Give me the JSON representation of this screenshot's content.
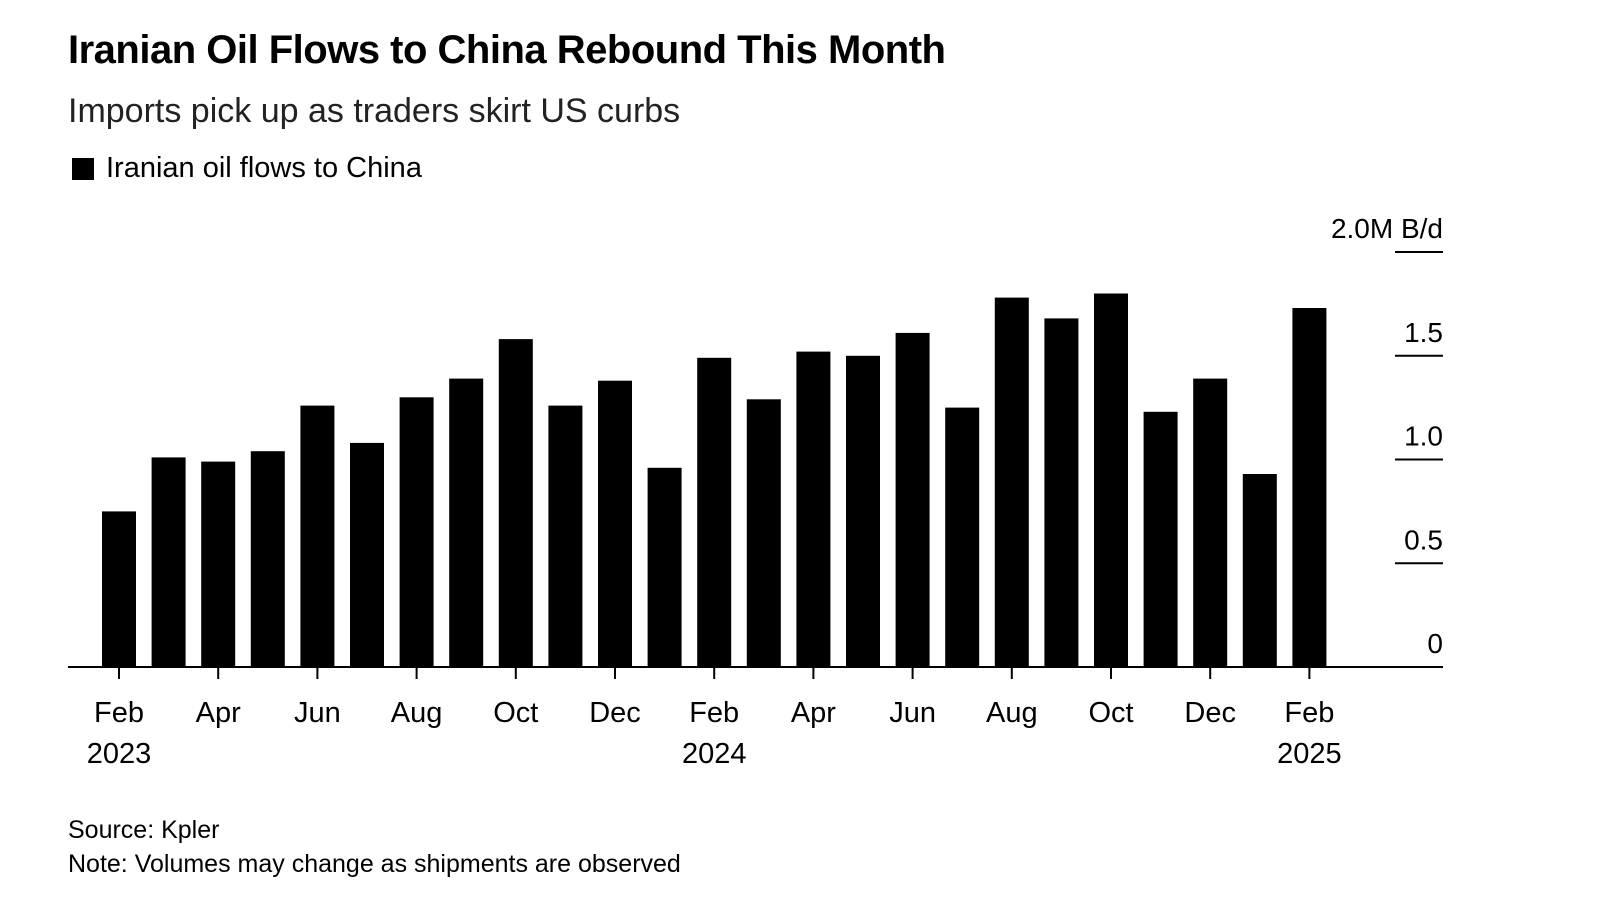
{
  "chart_data": {
    "type": "bar",
    "title": "Iranian Oil Flows to China Rebound This Month",
    "subtitle": "Imports pick up as traders skirt US curbs",
    "legend": [
      "Iranian oil flows to China"
    ],
    "unit_label": "2.0M B/d",
    "xlabel": "",
    "ylabel": "",
    "ylim": [
      0,
      2.0
    ],
    "y_ticks": [
      {
        "value": 0,
        "label": "0"
      },
      {
        "value": 0.5,
        "label": "0.5"
      },
      {
        "value": 1.0,
        "label": "1.0"
      },
      {
        "value": 1.5,
        "label": "1.5"
      },
      {
        "value": 2.0,
        "label": "2.0M B/d"
      }
    ],
    "categories": [
      "Feb 2023",
      "Mar 2023",
      "Apr 2023",
      "May 2023",
      "Jun 2023",
      "Jul 2023",
      "Aug 2023",
      "Sep 2023",
      "Oct 2023",
      "Nov 2023",
      "Dec 2023",
      "Jan 2024",
      "Feb 2024",
      "Mar 2024",
      "Apr 2024",
      "May 2024",
      "Jun 2024",
      "Jul 2024",
      "Aug 2024",
      "Sep 2024",
      "Oct 2024",
      "Nov 2024",
      "Dec 2024",
      "Jan 2025",
      "Feb 2025"
    ],
    "values": [
      0.75,
      1.01,
      0.99,
      1.04,
      1.26,
      1.08,
      1.3,
      1.39,
      1.58,
      1.26,
      1.38,
      0.96,
      1.49,
      1.29,
      1.52,
      1.5,
      1.61,
      1.25,
      1.78,
      1.68,
      1.8,
      1.23,
      1.39,
      0.93,
      1.73
    ],
    "x_ticks": [
      {
        "index": 0,
        "label": "Feb",
        "year": "2023"
      },
      {
        "index": 2,
        "label": "Apr",
        "year": ""
      },
      {
        "index": 4,
        "label": "Jun",
        "year": ""
      },
      {
        "index": 6,
        "label": "Aug",
        "year": ""
      },
      {
        "index": 8,
        "label": "Oct",
        "year": ""
      },
      {
        "index": 10,
        "label": "Dec",
        "year": ""
      },
      {
        "index": 12,
        "label": "Feb",
        "year": "2024"
      },
      {
        "index": 14,
        "label": "Apr",
        "year": ""
      },
      {
        "index": 16,
        "label": "Jun",
        "year": ""
      },
      {
        "index": 18,
        "label": "Aug",
        "year": ""
      },
      {
        "index": 20,
        "label": "Oct",
        "year": ""
      },
      {
        "index": 22,
        "label": "Dec",
        "year": ""
      },
      {
        "index": 24,
        "label": "Feb",
        "year": "2025"
      }
    ],
    "bar_color": "#000000",
    "axis_color": "#000000",
    "gridlines": "right-tick-marks"
  },
  "footer": {
    "source": "Source: Kpler",
    "note": "Note: Volumes may change as shipments are observed"
  }
}
